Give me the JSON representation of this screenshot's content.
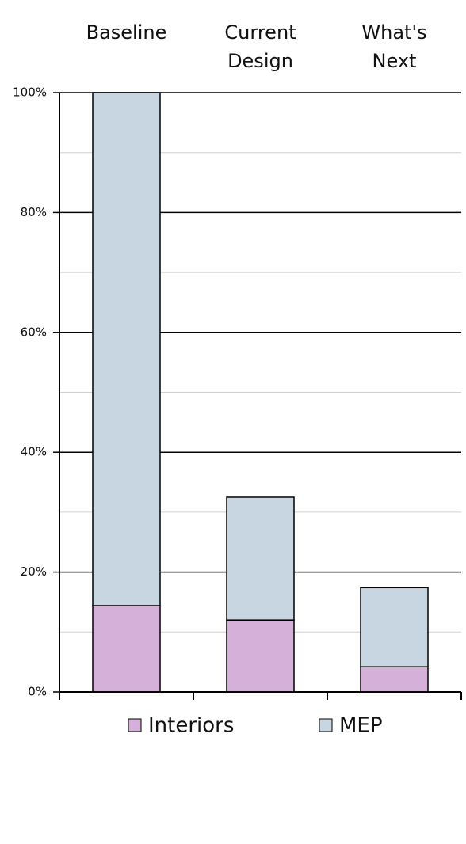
{
  "chart_data": {
    "type": "stacked_bar",
    "categories": [
      "Baseline",
      "Current Design",
      "What's Next"
    ],
    "series": [
      {
        "name": "Interiors",
        "color": "#d5b0d9",
        "values": [
          14.4,
          12.0,
          4.2
        ]
      },
      {
        "name": "MEP",
        "color": "#c8d6e2",
        "values": [
          85.6,
          20.5,
          13.2
        ]
      }
    ],
    "ylim": [
      0,
      100
    ],
    "yticks": [
      {
        "value": 0,
        "label": "0%"
      },
      {
        "value": 20,
        "label": "20%"
      },
      {
        "value": 40,
        "label": "40%"
      },
      {
        "value": 60,
        "label": "60%"
      },
      {
        "value": 80,
        "label": "80%"
      },
      {
        "value": 100,
        "label": "100%"
      }
    ],
    "minor_yticks": [
      10,
      30,
      50,
      70,
      90
    ],
    "grid": true,
    "legend": "bottom"
  }
}
